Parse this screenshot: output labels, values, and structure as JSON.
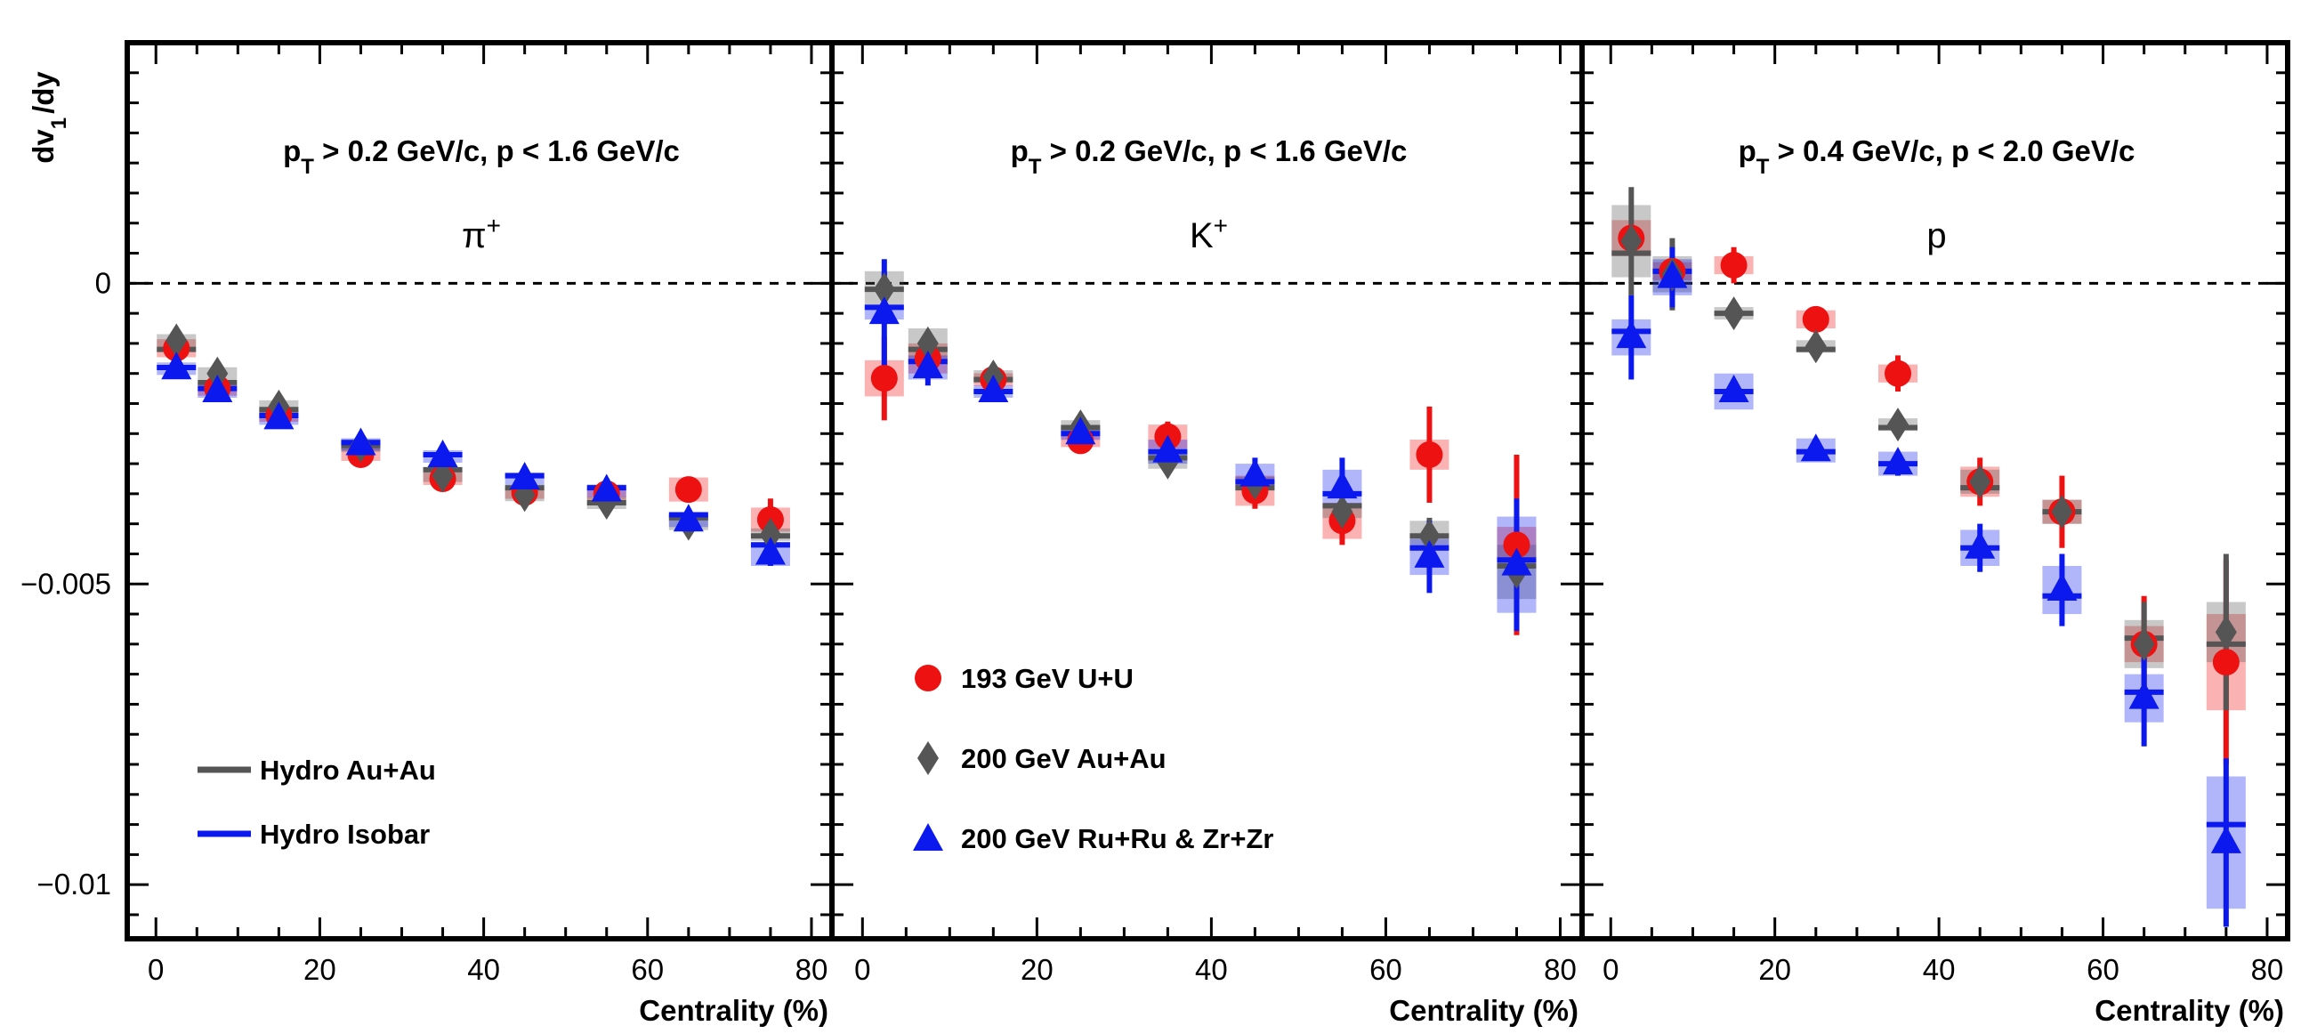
{
  "ylabel_main": "dv",
  "ylabel_sub": "1",
  "ylabel_tail": "/dy",
  "colors": {
    "uu": "#ee1111",
    "auau": "#555555",
    "isobar": "#0b18ee",
    "hydro_auau": "#555555",
    "hydro_isobar": "#0b18ee"
  },
  "legend_hydro": [
    {
      "key": "hydro_auau",
      "label": "Hydro Au+Au"
    },
    {
      "key": "hydro_isobar",
      "label": "Hydro Isobar"
    }
  ],
  "legend_data": [
    {
      "key": "uu",
      "marker": "circle",
      "label": "193 GeV U+U"
    },
    {
      "key": "auau",
      "marker": "diamond",
      "label": "200 GeV Au+Au"
    },
    {
      "key": "isobar",
      "marker": "triangle",
      "label": "200 GeV Ru+Ru & Zr+Zr"
    }
  ],
  "chart_data": [
    {
      "type": "scatter",
      "panel": "pi",
      "particle": "π",
      "particle_sup": "+",
      "cut": {
        "p1": "p",
        "sub": "T",
        "p2": " > 0.2 GeV/c, p < 1.6 GeV/c"
      },
      "xlabel": "Centrality (%)",
      "xlim": [
        -3.5,
        82.5
      ],
      "ylim": [
        -0.0109,
        0.004
      ],
      "xticks": [
        0,
        20,
        40,
        60,
        80
      ],
      "yticks": [
        0,
        -0.005,
        -0.01
      ],
      "ytick_labels": [
        "0",
        "−0.005",
        "−0.01"
      ],
      "series": [
        {
          "key": "uu",
          "x": [
            2.5,
            7.5,
            15,
            25,
            35,
            45,
            55,
            65,
            75
          ],
          "y": [
            -0.00108,
            -0.00175,
            -0.0022,
            -0.00285,
            -0.00325,
            -0.00348,
            -0.0035,
            -0.00343,
            -0.00393
          ],
          "err": [
            0.0001,
            0.0001,
            0.0001,
            0.0001,
            0.0001,
            0.0001,
            0.0001,
            0.0001,
            0.00035
          ],
          "sys": [
            0.00015,
            0.00012,
            0.0001,
            0.0001,
            0.0001,
            0.0001,
            0.0001,
            0.0002,
            0.0002
          ]
        },
        {
          "key": "auau",
          "x": [
            2.5,
            7.5,
            15,
            25,
            35,
            45,
            55,
            65,
            75
          ],
          "y": [
            -0.00095,
            -0.0015,
            -0.00205,
            -0.0027,
            -0.0032,
            -0.00352,
            -0.00365,
            -0.004,
            -0.00418
          ],
          "err": [
            0.0001,
            0.0001,
            0.0001,
            0.0001,
            0.0001,
            0.0001,
            0.0001,
            0.0001,
            0.0001
          ],
          "sys": [
            0.0001,
            0.0001,
            0.0001,
            0.0001,
            0.0001,
            0.0001,
            0.0001,
            0.0001,
            0.0001
          ]
        },
        {
          "key": "isobar",
          "x": [
            2.5,
            7.5,
            15,
            25,
            35,
            45,
            55,
            65,
            75
          ],
          "y": [
            -0.00142,
            -0.0018,
            -0.00225,
            -0.00268,
            -0.00288,
            -0.00325,
            -0.00345,
            -0.00395,
            -0.0045
          ],
          "err": [
            0.0001,
            0.0001,
            0.0001,
            0.0001,
            0.0001,
            0.0001,
            0.0001,
            0.0001,
            0.0002
          ],
          "sys": [
            0.0001,
            0.0001,
            0.0001,
            0.0001,
            0.0001,
            0.0001,
            0.0001,
            0.0001,
            0.0002
          ]
        }
      ],
      "hydro": [
        {
          "key": "hydro_auau",
          "x": [
            2.5,
            7.5,
            15,
            25,
            35,
            45,
            55,
            65,
            75
          ],
          "y": [
            -0.0011,
            -0.00165,
            -0.0021,
            -0.0027,
            -0.0031,
            -0.0034,
            -0.00365,
            -0.0039,
            -0.0042
          ]
        },
        {
          "key": "hydro_isobar",
          "x": [
            2.5,
            7.5,
            15,
            25,
            35,
            45,
            55,
            65,
            75
          ],
          "y": [
            -0.0014,
            -0.00175,
            -0.0022,
            -0.00265,
            -0.00285,
            -0.0032,
            -0.0034,
            -0.00385,
            -0.00435
          ]
        }
      ]
    },
    {
      "type": "scatter",
      "panel": "K",
      "particle": "K",
      "particle_sup": "+",
      "cut": {
        "p1": "p",
        "sub": "T",
        "p2": " > 0.2 GeV/c, p < 1.6 GeV/c"
      },
      "xlabel": "Centrality (%)",
      "xlim": [
        -3.5,
        82.5
      ],
      "ylim": [
        -0.0109,
        0.004
      ],
      "xticks": [
        0,
        20,
        40,
        60,
        80
      ],
      "yticks": [
        0,
        -0.005,
        -0.01
      ],
      "series": [
        {
          "key": "uu",
          "x": [
            2.5,
            7.5,
            15,
            25,
            35,
            45,
            55,
            65,
            75
          ],
          "y": [
            -0.00158,
            -0.00125,
            -0.0016,
            -0.00262,
            -0.00255,
            -0.00345,
            -0.00395,
            -0.00285,
            -0.00435
          ],
          "err": [
            0.0007,
            0.0002,
            0.0001,
            0.0001,
            0.00025,
            0.0003,
            0.0004,
            0.0008,
            0.0015
          ],
          "sys": [
            0.0003,
            0.00025,
            0.0001,
            0.0001,
            0.0002,
            0.00025,
            0.0003,
            0.00025,
            0.0003
          ]
        },
        {
          "key": "auau",
          "x": [
            2.5,
            7.5,
            15,
            25,
            35,
            45,
            55,
            65,
            75
          ],
          "y": [
            -0.0001,
            -0.001,
            -0.00155,
            -0.00238,
            -0.00298,
            -0.00332,
            -0.0038,
            -0.0042,
            -0.0048
          ],
          "err": [
            0.0003,
            0.0002,
            0.0001,
            0.0001,
            0.0001,
            0.0002,
            0.0002,
            0.0003,
            0.0007
          ],
          "sys": [
            0.0003,
            0.00025,
            0.0001,
            0.0001,
            0.0001,
            0.0001,
            0.0001,
            0.00025,
            0.00045
          ]
        },
        {
          "key": "isobar",
          "x": [
            2.5,
            7.5,
            15,
            25,
            35,
            45,
            55,
            65,
            75
          ],
          "y": [
            -0.0005,
            -0.0014,
            -0.0018,
            -0.0025,
            -0.0028,
            -0.0032,
            -0.0034,
            -0.00455,
            -0.00468
          ],
          "err": [
            0.0009,
            0.0003,
            0.0001,
            0.0001,
            0.0002,
            0.0003,
            0.0005,
            0.0006,
            0.0011
          ],
          "sys": [
            0.0001,
            0.0002,
            0.0001,
            0.0001,
            0.0002,
            0.0002,
            0.0003,
            0.0003,
            0.0008
          ]
        }
      ],
      "hydro": [
        {
          "key": "hydro_auau",
          "x": [
            2.5,
            7.5,
            15,
            25,
            35,
            45,
            55,
            65,
            75
          ],
          "y": [
            -0.0001,
            -0.0011,
            -0.0016,
            -0.0024,
            -0.0029,
            -0.0034,
            -0.0037,
            -0.0042,
            -0.0047
          ]
        },
        {
          "key": "hydro_isobar",
          "x": [
            2.5,
            7.5,
            15,
            25,
            35,
            45,
            55,
            65,
            75
          ],
          "y": [
            -0.0004,
            -0.0013,
            -0.0018,
            -0.0025,
            -0.0028,
            -0.0033,
            -0.0035,
            -0.0044,
            -0.0046
          ]
        }
      ]
    },
    {
      "type": "scatter",
      "panel": "p",
      "particle": "p",
      "particle_sup": "",
      "cut": {
        "p1": "p",
        "sub": "T",
        "p2": " > 0.4 GeV/c, p < 2.0 GeV/c"
      },
      "xlabel": "Centrality (%)",
      "xlim": [
        -3.5,
        82.5
      ],
      "ylim": [
        -0.0109,
        0.004
      ],
      "xticks": [
        0,
        20,
        40,
        60,
        80
      ],
      "yticks": [
        0,
        -0.005,
        -0.01
      ],
      "series": [
        {
          "key": "uu",
          "x": [
            2.5,
            7.5,
            15,
            25,
            35,
            45,
            55,
            65,
            75
          ],
          "y": [
            0.00075,
            0.0002,
            0.0003,
            -0.0006,
            -0.0015,
            -0.0033,
            -0.0038,
            -0.006,
            -0.0063
          ],
          "err": [
            0.0001,
            0.0001,
            0.0003,
            0.0002,
            0.0003,
            0.0004,
            0.0006,
            0.0008,
            0.0017
          ],
          "sys": [
            0.0003,
            0.00015,
            0.00015,
            0.00015,
            0.00015,
            0.00025,
            0.0002,
            0.0003,
            0.0008
          ]
        },
        {
          "key": "auau",
          "x": [
            2.5,
            7.5,
            15,
            25,
            35,
            45,
            55,
            65,
            75
          ],
          "y": [
            0.0007,
            0.00015,
            -0.0005,
            -0.00105,
            -0.00235,
            -0.0033,
            -0.0038,
            -0.006,
            -0.0058
          ],
          "err": [
            0.0009,
            0.0006,
            0.0001,
            0.0001,
            0.0001,
            0.0002,
            0.0002,
            0.0007,
            0.0013
          ],
          "sys": [
            0.0006,
            0.0003,
            0.0001,
            0.0001,
            0.0001,
            0.0002,
            0.0002,
            0.0004,
            0.0005
          ]
        },
        {
          "key": "isobar",
          "x": [
            2.5,
            7.5,
            15,
            25,
            35,
            45,
            55,
            65,
            75
          ],
          "y": [
            -0.0009,
            0.0001,
            -0.0018,
            -0.00278,
            -0.003,
            -0.0044,
            -0.0051,
            -0.0069,
            -0.0093
          ],
          "err": [
            0.0007,
            0.0005,
            0.0001,
            0.0001,
            0.0002,
            0.0004,
            0.0006,
            0.0008,
            0.0014
          ],
          "sys": [
            0.0003,
            0.0003,
            0.0003,
            0.0002,
            0.0002,
            0.0003,
            0.0004,
            0.0004,
            0.0011
          ]
        }
      ],
      "hydro": [
        {
          "key": "hydro_auau",
          "x": [
            2.5,
            7.5,
            15,
            25,
            35,
            45,
            55,
            65,
            75
          ],
          "y": [
            0.0005,
            0.0002,
            -0.0005,
            -0.0011,
            -0.0024,
            -0.0034,
            -0.0038,
            -0.0059,
            -0.006
          ]
        },
        {
          "key": "hydro_isobar",
          "x": [
            2.5,
            7.5,
            15,
            25,
            35,
            45,
            55,
            65,
            75
          ],
          "y": [
            -0.0008,
            0.0002,
            -0.0018,
            -0.0028,
            -0.003,
            -0.0044,
            -0.0052,
            -0.0068,
            -0.009
          ]
        }
      ]
    }
  ]
}
